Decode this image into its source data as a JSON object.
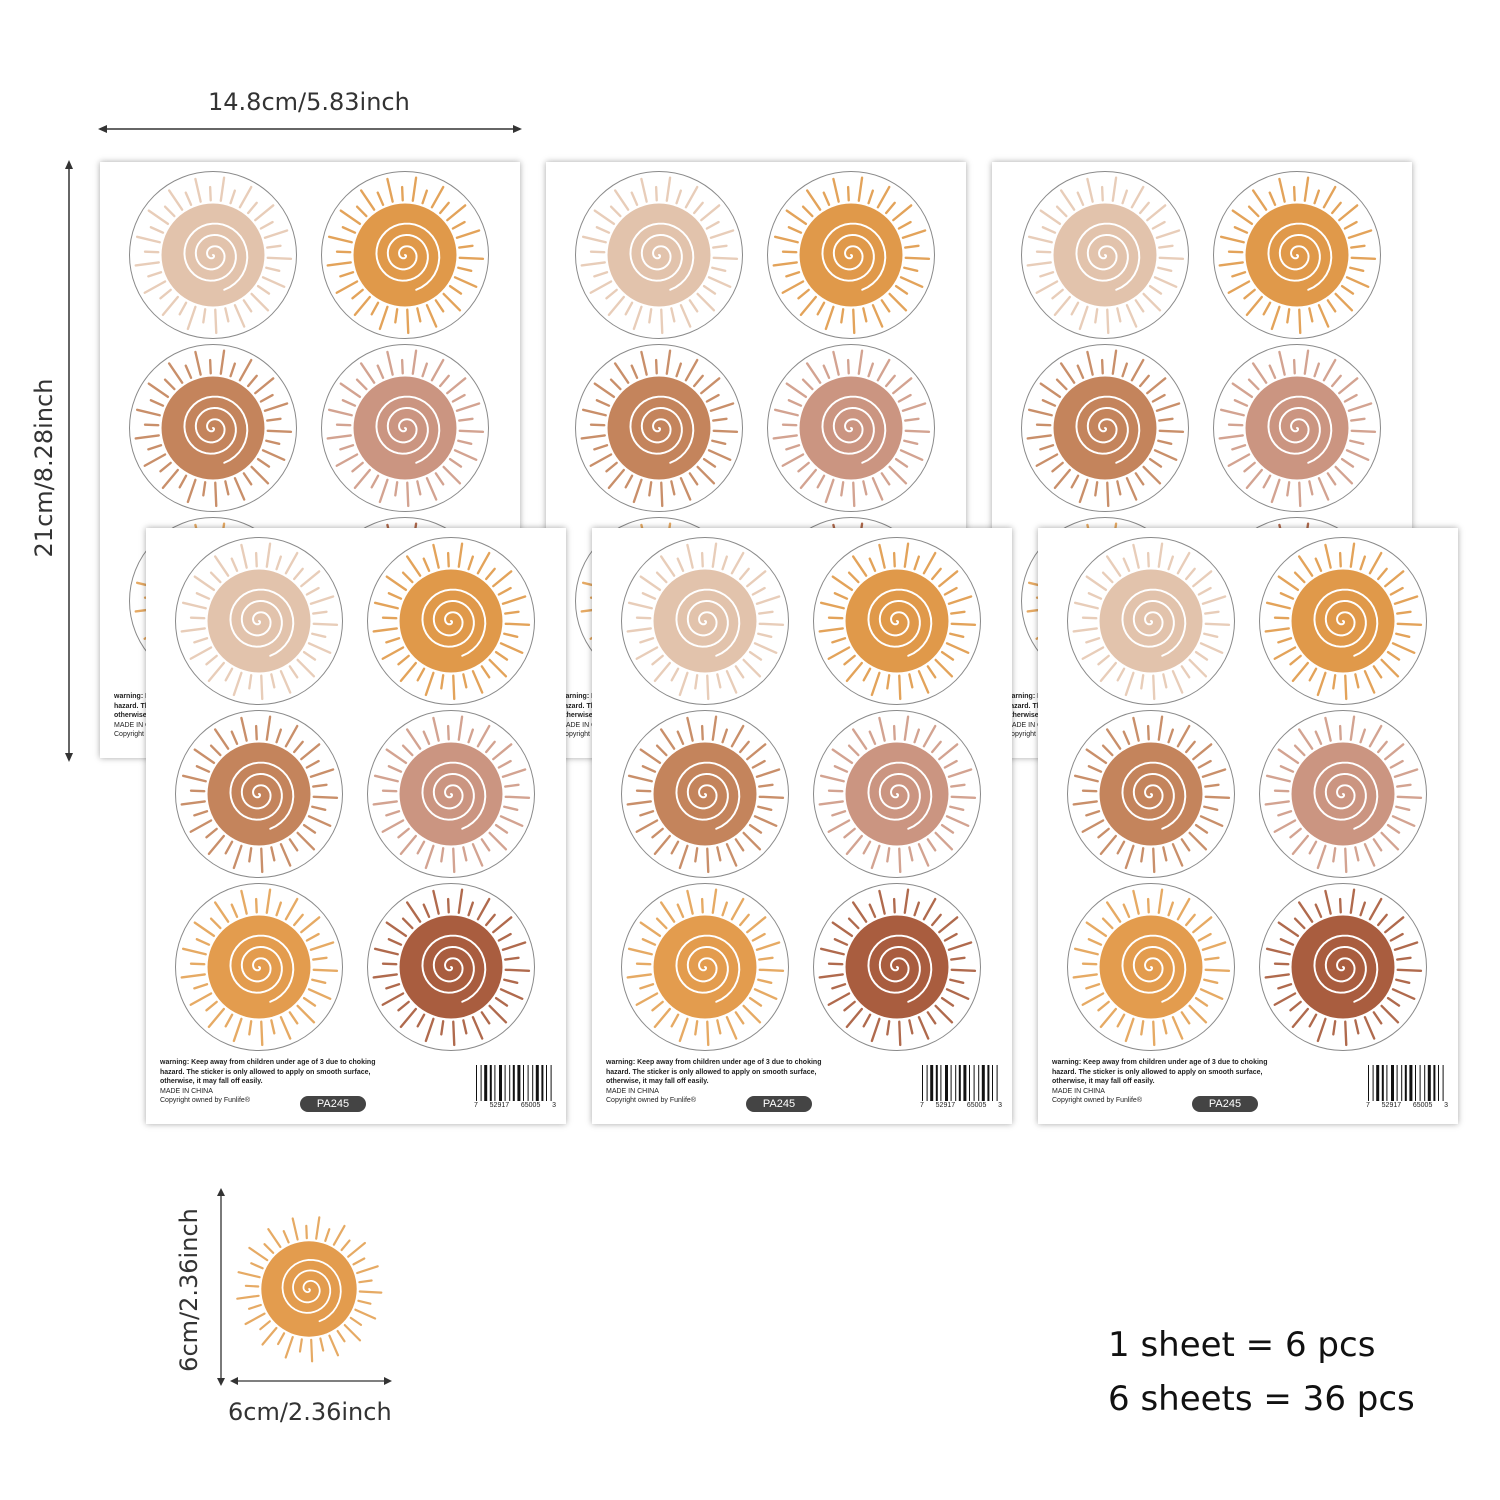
{
  "dimensions": {
    "sheet_width": "14.8cm/5.83inch",
    "sheet_height": "21cm/8.28inch",
    "sticker_height": "6cm/2.36inch",
    "sticker_width": "6cm/2.36inch"
  },
  "sheet": {
    "warning_line1": "warning: Keep away from children under age of 3 due to choking",
    "warning_line2": "hazard. The sticker is only allowed to apply on smooth surface,",
    "warning_line3": "otherwise, it may fall off easily.",
    "made_in": "MADE IN CHINA",
    "copyright": "Copyright owned by Funlife®",
    "code": "PA245",
    "barcode_digits": [
      "7",
      "52917",
      "65005",
      "3"
    ]
  },
  "summary": {
    "line1": "1 sheet = 6 pcs",
    "line2": "6 sheets = 36 pcs"
  },
  "sticker_colors": {
    "beige": {
      "core": "#e2c3ac",
      "rays": "#e8cdb9"
    },
    "orange": {
      "core": "#e0994a",
      "rays": "#e3a35a"
    },
    "brown": {
      "core": "#c4845c",
      "rays": "#c98f6a"
    },
    "rose": {
      "core": "#cb9581",
      "rays": "#d3a391"
    },
    "amber": {
      "core": "#e39c4e",
      "rays": "#e6aa64"
    },
    "rust": {
      "core": "#a95d3f",
      "rays": "#b06a4d"
    }
  }
}
